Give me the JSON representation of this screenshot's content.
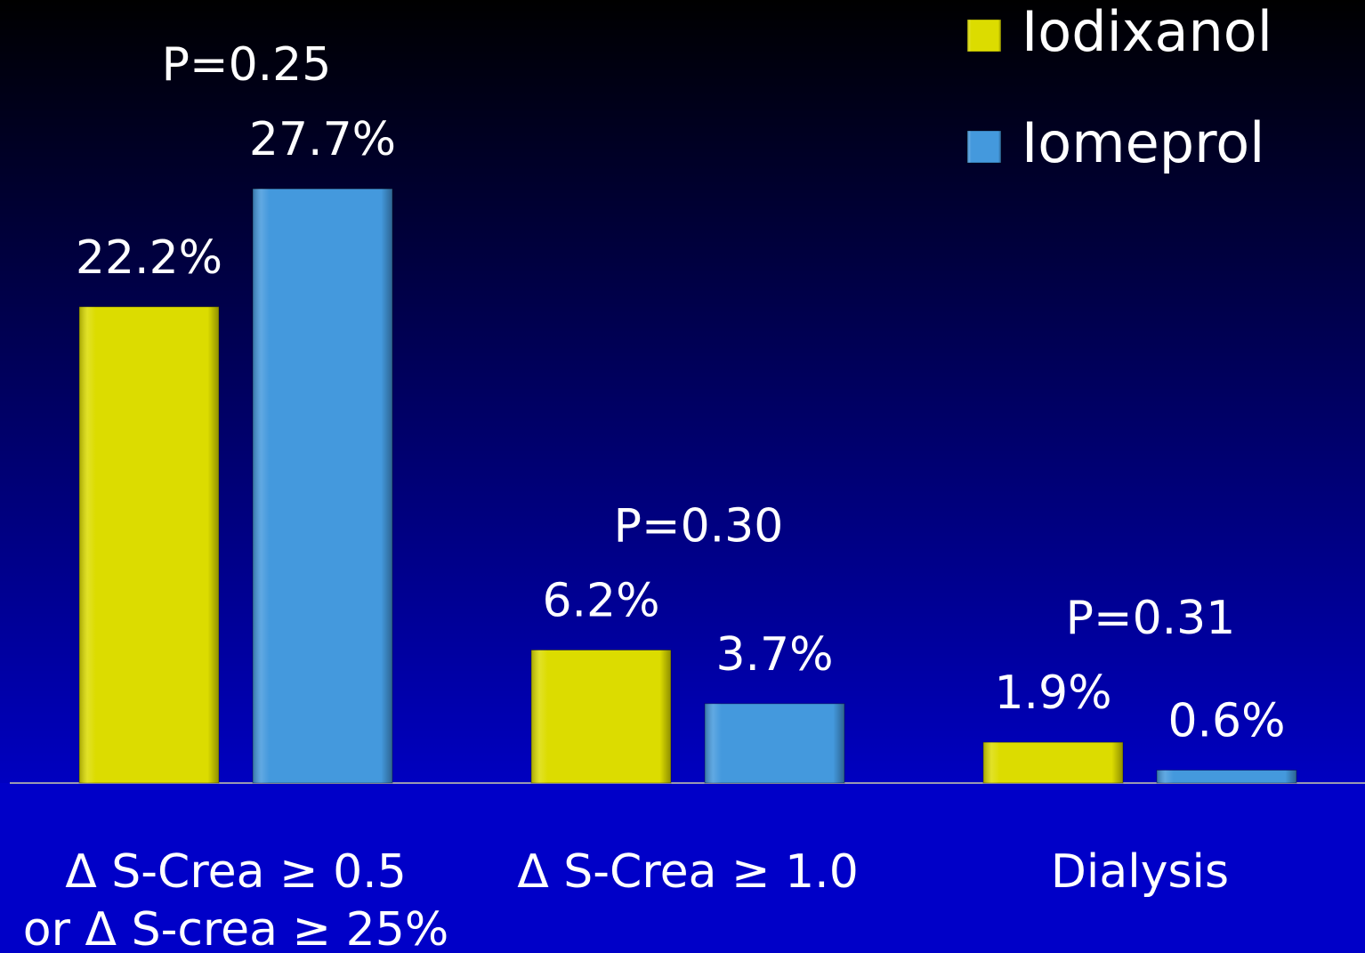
{
  "chart_data": {
    "type": "bar",
    "categories": [
      "Δ S-Crea ≥ 0.5\nor Δ S-crea ≥ 25%",
      "Δ S-Crea ≥ 1.0",
      "Dialysis"
    ],
    "series": [
      {
        "name": "Iodixanol",
        "color": "#dcdc00",
        "values": [
          22.2,
          6.2,
          1.9
        ],
        "value_labels": [
          "22.2%",
          "6.2%",
          "1.9%"
        ]
      },
      {
        "name": "Iomeprol",
        "color": "#4499dd",
        "values": [
          27.7,
          3.7,
          0.6
        ],
        "value_labels": [
          "27.7%",
          "3.7%",
          "0.6%"
        ]
      }
    ],
    "annotations": [
      "P=0.25",
      "P=0.30",
      "P=0.31"
    ],
    "ylim": [
      0,
      36.5
    ],
    "legend": "top-right"
  }
}
